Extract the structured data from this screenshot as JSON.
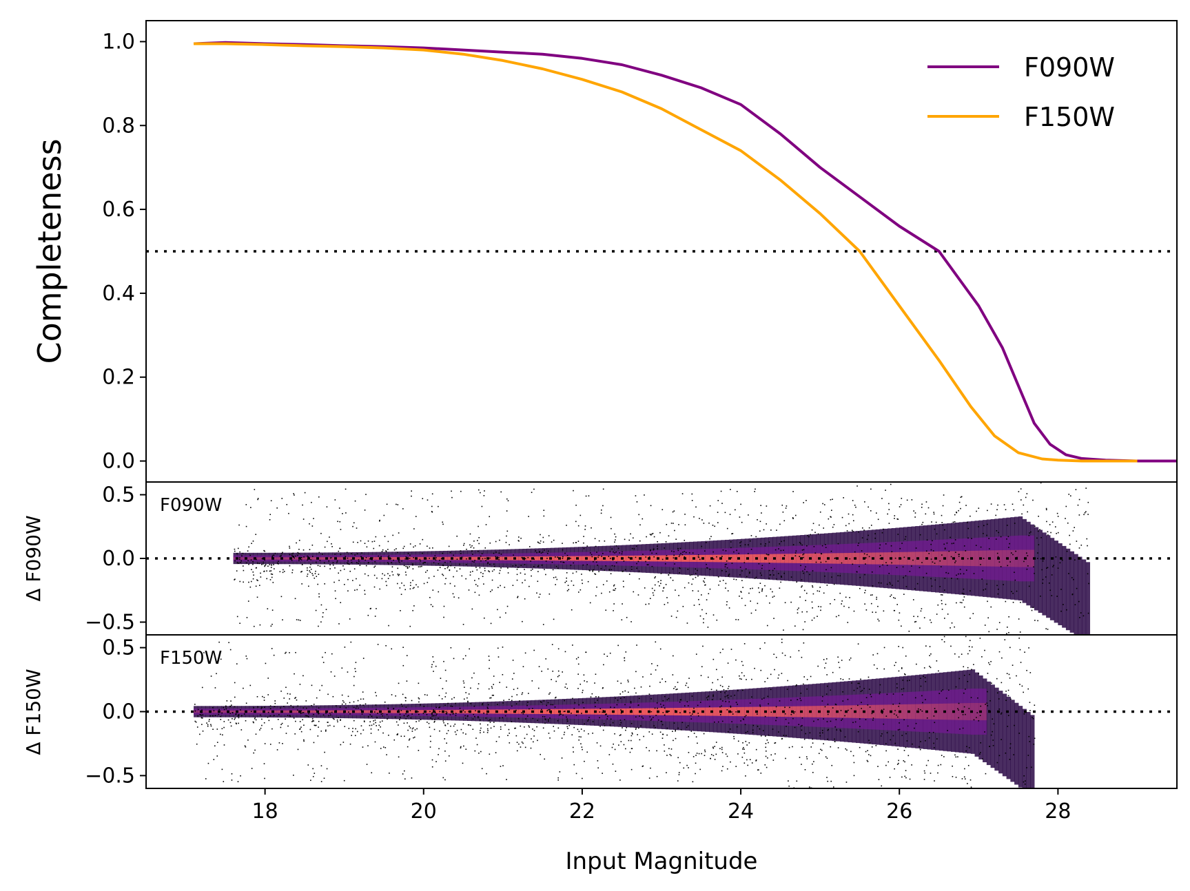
{
  "colors": {
    "F090W": "#800080",
    "F150W": "#ffa500",
    "axis": "#000000",
    "reference_line": "#000000"
  },
  "chart_data": [
    {
      "type": "line",
      "panel": "completeness",
      "ylabel": "Completeness",
      "ylim": [
        -0.05,
        1.05
      ],
      "xlim": [
        16.5,
        29.5
      ],
      "yticks": [
        0.0,
        0.2,
        0.4,
        0.6,
        0.8,
        1.0
      ],
      "ytick_labels": [
        "0.0",
        "0.2",
        "0.4",
        "0.6",
        "0.8",
        "1.0"
      ],
      "reference_line": 0.5,
      "legend": {
        "placement": "top-right",
        "entries": [
          "F090W",
          "F150W"
        ]
      },
      "series": [
        {
          "name": "F090W",
          "x": [
            17.1,
            17.5,
            18.0,
            18.5,
            19.0,
            19.5,
            20.0,
            20.5,
            21.0,
            21.5,
            22.0,
            22.5,
            23.0,
            23.5,
            24.0,
            24.5,
            25.0,
            25.5,
            26.0,
            26.5,
            27.0,
            27.3,
            27.5,
            27.7,
            27.9,
            28.1,
            28.3,
            28.6,
            29.0,
            29.5
          ],
          "values": [
            0.995,
            0.998,
            0.995,
            0.993,
            0.99,
            0.988,
            0.985,
            0.98,
            0.975,
            0.97,
            0.96,
            0.945,
            0.92,
            0.89,
            0.85,
            0.78,
            0.7,
            0.63,
            0.56,
            0.5,
            0.37,
            0.27,
            0.18,
            0.09,
            0.04,
            0.015,
            0.006,
            0.002,
            0.0,
            0.0
          ]
        },
        {
          "name": "F150W",
          "x": [
            17.1,
            17.5,
            18.0,
            18.5,
            19.0,
            19.5,
            20.0,
            20.5,
            21.0,
            21.5,
            22.0,
            22.5,
            23.0,
            23.5,
            24.0,
            24.5,
            25.0,
            25.5,
            26.0,
            26.5,
            26.9,
            27.2,
            27.5,
            27.8,
            28.0,
            28.3,
            28.6,
            29.0
          ],
          "values": [
            0.995,
            0.995,
            0.993,
            0.99,
            0.988,
            0.985,
            0.98,
            0.97,
            0.955,
            0.935,
            0.91,
            0.88,
            0.84,
            0.79,
            0.74,
            0.67,
            0.59,
            0.5,
            0.37,
            0.24,
            0.13,
            0.06,
            0.02,
            0.005,
            0.002,
            0.0,
            0.0,
            0.0
          ]
        }
      ]
    },
    {
      "type": "heatmap",
      "panel": "delta-f090w",
      "label": "F090W",
      "ylabel": "Δ F090W",
      "ylim": [
        -0.6,
        0.6
      ],
      "xlim": [
        16.5,
        29.5
      ],
      "yticks": [
        -0.5,
        0.0,
        0.5
      ],
      "ytick_labels": [
        "−0.5",
        "0.0",
        "0.5"
      ],
      "reference_line": 0.0,
      "x_range": [
        17.6,
        28.4
      ],
      "spread_at_bright": 0.02,
      "spread_at_faint": 0.15,
      "completeness_limit": 27.5
    },
    {
      "type": "heatmap",
      "panel": "delta-f150w",
      "label": "F150W",
      "ylabel": "Δ F150W",
      "ylim": [
        -0.6,
        0.6
      ],
      "xlim": [
        16.5,
        29.5
      ],
      "yticks": [
        -0.5,
        0.0,
        0.5
      ],
      "ytick_labels": [
        "−0.5",
        "0.0",
        "0.5"
      ],
      "reference_line": 0.0,
      "x_range": [
        17.1,
        27.7
      ],
      "spread_at_bright": 0.02,
      "spread_at_faint": 0.15,
      "completeness_limit": 26.9
    }
  ],
  "x_axis": {
    "label": "Input Magnitude",
    "ticks": [
      18,
      20,
      22,
      24,
      26,
      28
    ],
    "tick_labels": [
      "18",
      "20",
      "22",
      "24",
      "26",
      "28"
    ]
  }
}
